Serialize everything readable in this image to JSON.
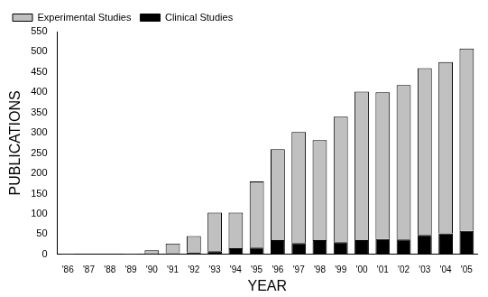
{
  "chart_data": {
    "type": "bar",
    "x_label": "YEAR",
    "y_label": "PUBLICATIONS",
    "categories": [
      "'86",
      "'87",
      "'88",
      "'89",
      "'90",
      "'91",
      "'92",
      "'93",
      "'94",
      "'95",
      "'96",
      "'97",
      "'98",
      "'99",
      "'00",
      "'01",
      "'02",
      "'03",
      "'04",
      "'05"
    ],
    "series": [
      {
        "name": "Clinical Studies",
        "color": "#000000",
        "values": [
          0,
          1,
          1,
          0,
          1,
          3,
          5,
          8,
          15,
          17,
          35,
          28,
          35,
          30,
          35,
          38,
          37,
          48,
          52,
          58
        ]
      },
      {
        "name": "Experimental Studies",
        "color": "#c0c0c0",
        "values": [
          1,
          1,
          1,
          1,
          9,
          24,
          40,
          95,
          88,
          163,
          225,
          274,
          247,
          310,
          367,
          362,
          381,
          412,
          423,
          450
        ]
      }
    ],
    "stacked": true,
    "ylim": [
      0,
      550
    ],
    "yticks": [
      0,
      50,
      100,
      150,
      200,
      250,
      300,
      350,
      400,
      450,
      500,
      550
    ],
    "grid": false,
    "legend": "top-left"
  }
}
